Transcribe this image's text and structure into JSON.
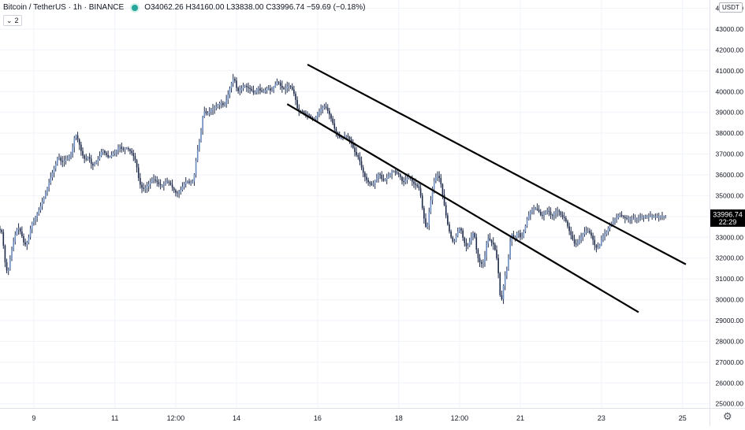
{
  "legend": {
    "symbol": "Bitcoin / TetherUS · 1h · BINANCE",
    "ohlc": "O34062.26 H34160.00 L33838.00 C33996.74 −59.69 (−0.18%)",
    "indicator_count": "2"
  },
  "price_axis": {
    "currency": "USDT",
    "last_price": "33996.74",
    "countdown": "22:29"
  },
  "colors": {
    "candle": "#1e2a4a",
    "candle_fill": "#6a8cc0",
    "trendline": "#000000",
    "grid": "#f0f3fa",
    "axis_text": "#131722",
    "price_label_bg": "#000000"
  },
  "chart_data": {
    "type": "line",
    "title": "Bitcoin / TetherUS · 1h · BINANCE",
    "y_ticks": [
      25000,
      26000,
      27000,
      28000,
      29000,
      30000,
      31000,
      32000,
      33000,
      34000,
      35000,
      36000,
      37000,
      38000,
      39000,
      40000,
      41000,
      42000,
      43000,
      44000
    ],
    "y_tick_labels": [
      "25000.00",
      "26000.00",
      "27000.00",
      "28000.00",
      "29000.00",
      "30000.00",
      "31000.00",
      "32000.00",
      "33000.00",
      "34000.00",
      "35000.00",
      "36000.00",
      "37000.00",
      "38000.00",
      "39000.00",
      "40000.00",
      "41000.00",
      "42000.00",
      "43000.00",
      "44000.00"
    ],
    "ylim": [
      24800,
      44400
    ],
    "x_range_hours": [
      -20,
      400
    ],
    "x_ticks": [
      {
        "label": "9",
        "hour": 0
      },
      {
        "label": "11",
        "hour": 48
      },
      {
        "label": "12:00",
        "hour": 84
      },
      {
        "label": "14",
        "hour": 120
      },
      {
        "label": "16",
        "hour": 168
      },
      {
        "label": "18",
        "hour": 216
      },
      {
        "label": "12:00",
        "hour": 252
      },
      {
        "label": "21",
        "hour": 288
      },
      {
        "label": "23",
        "hour": 336
      },
      {
        "label": "25",
        "hour": 384
      }
    ],
    "price_path": {
      "hours": [
        -20,
        -18,
        -17,
        -15,
        -13,
        -11,
        -9,
        -7,
        -5,
        -3,
        -1,
        1,
        3,
        5,
        7,
        9,
        11,
        13,
        15,
        17,
        19,
        21,
        23,
        25,
        27,
        29,
        31,
        33,
        35,
        37,
        39,
        41,
        43,
        45,
        47,
        49,
        51,
        53,
        55,
        57,
        59,
        61,
        63,
        65,
        67,
        69,
        71,
        73,
        75,
        77,
        79,
        81,
        83,
        85,
        87,
        89,
        91,
        93,
        95,
        97,
        99,
        101,
        103,
        105,
        107,
        109,
        111,
        113,
        115,
        117,
        119,
        121,
        123,
        125,
        127,
        129,
        131,
        133,
        135,
        137,
        139,
        141,
        143,
        145,
        147,
        149,
        151,
        153,
        155,
        157,
        159,
        161,
        163,
        165,
        167,
        169,
        171,
        173,
        175,
        177,
        179,
        181,
        183,
        185,
        187,
        189,
        191,
        193,
        195,
        197,
        199,
        201,
        203,
        205,
        207,
        209,
        211,
        213,
        215,
        217,
        219,
        221,
        223,
        225,
        227,
        229,
        231,
        233,
        235,
        237,
        239,
        241,
        243,
        245,
        247,
        249,
        251,
        253,
        255,
        257,
        259,
        261,
        263,
        265,
        267,
        269,
        271,
        273,
        275,
        277,
        279,
        281,
        283,
        285,
        287,
        289,
        291,
        293,
        295,
        297,
        299,
        301,
        303,
        305,
        307,
        309,
        311,
        313,
        315,
        317,
        319,
        321,
        323,
        325,
        327,
        329,
        331,
        333,
        335,
        337,
        339,
        341,
        343,
        345,
        347,
        349,
        351,
        353,
        355,
        357,
        359,
        361,
        363,
        365,
        367,
        369,
        371,
        373,
        375,
        377
      ],
      "prices": [
        33400,
        33200,
        32000,
        31200,
        32200,
        33000,
        33500,
        33200,
        32600,
        32800,
        33600,
        33900,
        34200,
        34600,
        35000,
        35500,
        36000,
        36400,
        36900,
        36600,
        36700,
        36800,
        37100,
        38000,
        37600,
        37000,
        36700,
        36900,
        36400,
        36600,
        36800,
        37200,
        37000,
        36800,
        37000,
        37100,
        37400,
        37200,
        37300,
        37200,
        37000,
        36600,
        35600,
        35300,
        35400,
        35600,
        35800,
        35700,
        35500,
        35500,
        35700,
        35600,
        35300,
        35100,
        35200,
        35500,
        35700,
        35600,
        35700,
        37000,
        37800,
        39100,
        38900,
        39100,
        39200,
        39300,
        39500,
        39300,
        39700,
        40300,
        40700,
        40000,
        40100,
        40300,
        40200,
        40100,
        39900,
        40200,
        40000,
        40000,
        40200,
        40000,
        40300,
        40500,
        40200,
        40100,
        40300,
        40200,
        39800,
        39000,
        39100,
        38900,
        38900,
        38700,
        38700,
        39000,
        39200,
        39300,
        39000,
        38600,
        38100,
        37800,
        37800,
        37900,
        37800,
        37400,
        37000,
        36800,
        36200,
        35800,
        35600,
        35500,
        35800,
        36100,
        35700,
        35800,
        36000,
        36200,
        36100,
        36000,
        35600,
        35800,
        35900,
        35600,
        35500,
        35300,
        34100,
        33300,
        34500,
        35600,
        36000,
        35800,
        34800,
        33800,
        33100,
        32700,
        33200,
        33500,
        32800,
        32500,
        32900,
        33300,
        32100,
        31700,
        31800,
        33000,
        32800,
        32600,
        31800,
        29700,
        31000,
        31600,
        33200,
        32900,
        33300,
        32900,
        33400,
        34000,
        34300,
        34400,
        34300,
        34000,
        34200,
        34300,
        34000,
        34200,
        34300,
        34000,
        33900,
        33400,
        33000,
        32600,
        32800,
        33100,
        33300,
        33300,
        33000,
        32500,
        32500,
        33000,
        33200,
        33500,
        33700,
        33900,
        34100,
        34000,
        33900,
        33900,
        33900,
        33900,
        33900,
        34000,
        34000,
        34000,
        34000,
        34000,
        34000,
        34000,
        34000
      ]
    },
    "annotations": [
      {
        "kind": "trendline",
        "from": {
          "hour": 162,
          "price": 41300
        },
        "to": {
          "hour": 386,
          "price": 31700
        }
      },
      {
        "kind": "trendline",
        "from": {
          "hour": 150,
          "price": 39400
        },
        "to": {
          "hour": 358,
          "price": 29400
        }
      }
    ],
    "last_price": 33996.74,
    "grid": true,
    "legend_position": "top-left"
  }
}
